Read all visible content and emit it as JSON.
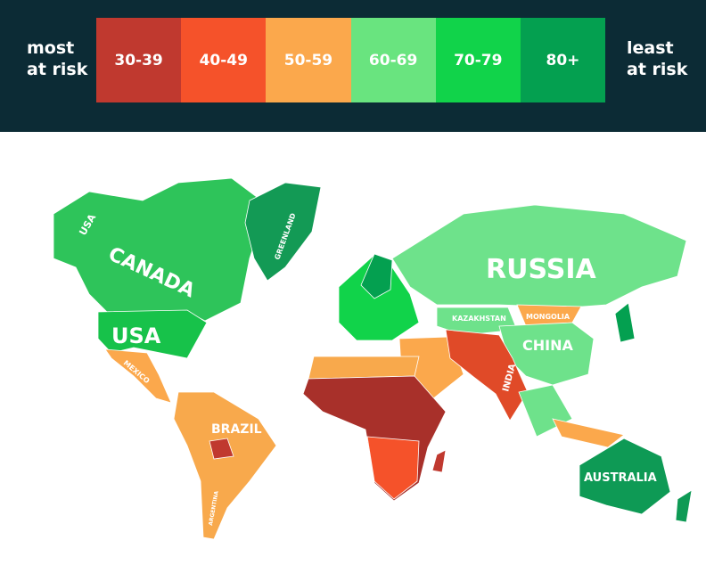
{
  "legend": {
    "left_label": "most at risk",
    "right_label": "least at risk",
    "bins": [
      {
        "label": "30-39",
        "color": "#c0392f"
      },
      {
        "label": "40-49",
        "color": "#f5522a"
      },
      {
        "label": "50-59",
        "color": "#fba84c"
      },
      {
        "label": "60-69",
        "color": "#69e47f"
      },
      {
        "label": "70-79",
        "color": "#11d34a"
      },
      {
        "label": "80+",
        "color": "#04a050"
      }
    ]
  },
  "map": {
    "labels": [
      "USA",
      "CANADA",
      "USA",
      "GREENLAND",
      "MEXICO",
      "BRAZIL",
      "ARGENTINA",
      "RUSSIA",
      "KAZAKHSTAN",
      "MONGOLIA",
      "CHINA",
      "INDIA",
      "AUSTRALIA"
    ]
  }
}
